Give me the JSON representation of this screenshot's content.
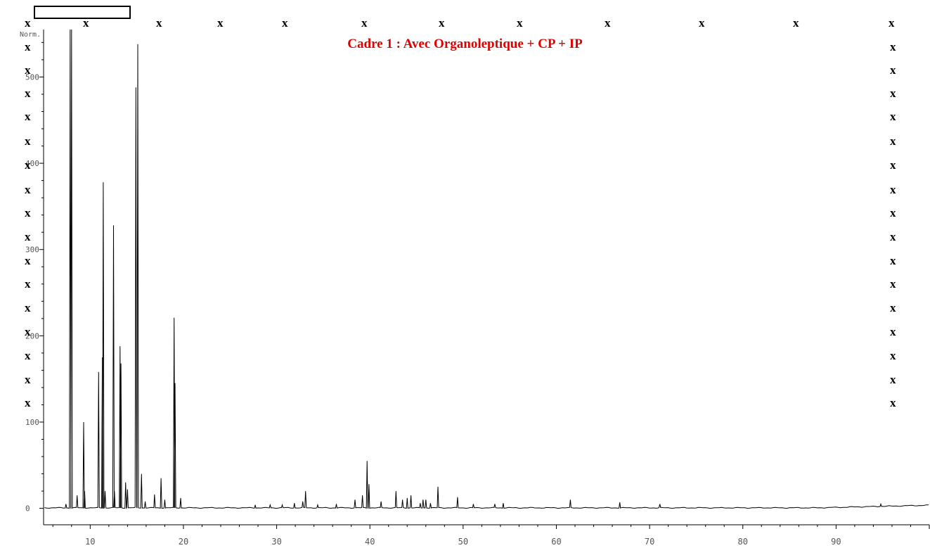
{
  "title": "Cadre 1 : Avec Organoleptique + CP + IP",
  "marker": "x",
  "ylabel_abbrev": "Norm.",
  "colors": {
    "title": "#e00000",
    "trace": "#000000"
  },
  "chart_data": {
    "type": "line",
    "xlabel": "",
    "ylabel": "Norm.",
    "xlim": [
      5,
      100
    ],
    "ylim": [
      -15,
      555
    ],
    "xticks": [
      10,
      20,
      30,
      40,
      50,
      60,
      70,
      80,
      90
    ],
    "yticks": [
      0,
      100,
      200,
      300,
      400,
      500
    ],
    "grid": false,
    "peaks": [
      {
        "x": 7.4,
        "y": 5
      },
      {
        "x": 7.85,
        "y": 600
      },
      {
        "x": 8.0,
        "y": 600
      },
      {
        "x": 8.6,
        "y": 15
      },
      {
        "x": 9.3,
        "y": 100
      },
      {
        "x": 9.4,
        "y": 20
      },
      {
        "x": 10.9,
        "y": 158
      },
      {
        "x": 11.3,
        "y": 175
      },
      {
        "x": 11.4,
        "y": 378
      },
      {
        "x": 11.6,
        "y": 20
      },
      {
        "x": 12.5,
        "y": 328
      },
      {
        "x": 12.6,
        "y": 20
      },
      {
        "x": 13.2,
        "y": 188
      },
      {
        "x": 13.3,
        "y": 168
      },
      {
        "x": 13.8,
        "y": 30
      },
      {
        "x": 14.0,
        "y": 22
      },
      {
        "x": 14.9,
        "y": 488
      },
      {
        "x": 15.1,
        "y": 538
      },
      {
        "x": 15.5,
        "y": 40
      },
      {
        "x": 15.9,
        "y": 8
      },
      {
        "x": 16.9,
        "y": 16
      },
      {
        "x": 17.6,
        "y": 35
      },
      {
        "x": 18.0,
        "y": 10
      },
      {
        "x": 19.0,
        "y": 221
      },
      {
        "x": 19.1,
        "y": 145
      },
      {
        "x": 19.7,
        "y": 12
      },
      {
        "x": 27.7,
        "y": 4
      },
      {
        "x": 29.3,
        "y": 4
      },
      {
        "x": 30.6,
        "y": 4
      },
      {
        "x": 31.9,
        "y": 6
      },
      {
        "x": 32.8,
        "y": 8
      },
      {
        "x": 33.1,
        "y": 20
      },
      {
        "x": 34.4,
        "y": 4
      },
      {
        "x": 36.4,
        "y": 5
      },
      {
        "x": 38.4,
        "y": 10
      },
      {
        "x": 39.2,
        "y": 15
      },
      {
        "x": 39.7,
        "y": 55
      },
      {
        "x": 39.9,
        "y": 28
      },
      {
        "x": 41.2,
        "y": 8
      },
      {
        "x": 42.8,
        "y": 20
      },
      {
        "x": 43.5,
        "y": 10
      },
      {
        "x": 44.0,
        "y": 12
      },
      {
        "x": 44.4,
        "y": 15
      },
      {
        "x": 45.4,
        "y": 6
      },
      {
        "x": 45.7,
        "y": 10
      },
      {
        "x": 46.0,
        "y": 10
      },
      {
        "x": 46.5,
        "y": 6
      },
      {
        "x": 47.3,
        "y": 25
      },
      {
        "x": 49.4,
        "y": 13
      },
      {
        "x": 51.1,
        "y": 5
      },
      {
        "x": 53.4,
        "y": 5
      },
      {
        "x": 54.3,
        "y": 6
      },
      {
        "x": 61.5,
        "y": 10
      },
      {
        "x": 66.8,
        "y": 7
      },
      {
        "x": 71.1,
        "y": 5
      },
      {
        "x": 94.8,
        "y": 5
      }
    ]
  }
}
